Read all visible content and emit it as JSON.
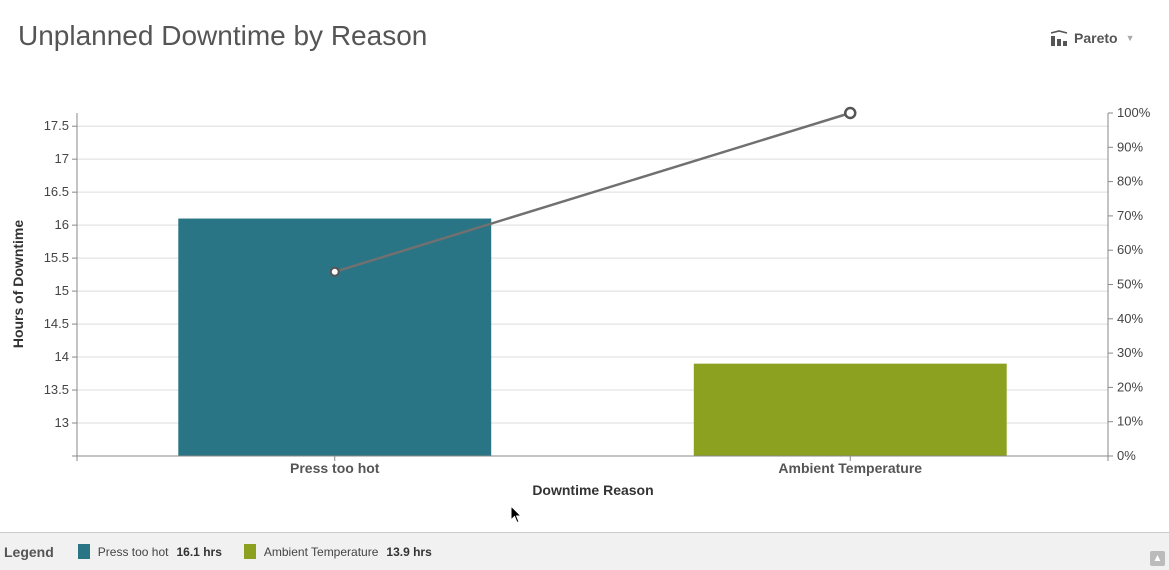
{
  "header": {
    "title": "Unplanned Downtime by Reason",
    "chart_type_label": "Pareto",
    "chart_type_icon": "bar-chart-icon"
  },
  "chart_data": {
    "type": "bar",
    "categories": [
      "Press too hot",
      "Ambient Temperature"
    ],
    "values": [
      16.1,
      13.9
    ],
    "colors": [
      "#2a7585",
      "#8ca11f"
    ],
    "xlabel": "Downtime Reason",
    "ylabel": "Hours of Downtime",
    "ylim": [
      12.5,
      17.7
    ],
    "yticks": [
      13,
      13.5,
      14,
      14.5,
      15,
      15.5,
      16,
      16.5,
      17,
      17.5
    ],
    "ytick_labels": [
      "13",
      "13.5",
      "14",
      "14.5",
      "15",
      "15.5",
      "16",
      "16.5",
      "17",
      "17.5"
    ],
    "grid": true,
    "secondary_axis": {
      "ylim": [
        0,
        100
      ],
      "ticks": [
        0,
        10,
        20,
        30,
        40,
        50,
        60,
        70,
        80,
        90,
        100
      ],
      "tick_labels": [
        "0%",
        "10%",
        "20%",
        "30%",
        "40%",
        "50%",
        "60%",
        "70%",
        "80%",
        "90%",
        "100%"
      ]
    },
    "cumulative_line": {
      "values": [
        53.7,
        100
      ],
      "color": "#707070"
    }
  },
  "legend": {
    "title": "Legend",
    "items": [
      {
        "label": "Press too hot",
        "value": "16.1 hrs",
        "color": "#2a7585"
      },
      {
        "label": "Ambient Temperature",
        "value": "13.9 hrs",
        "color": "#8ca11f"
      }
    ]
  }
}
